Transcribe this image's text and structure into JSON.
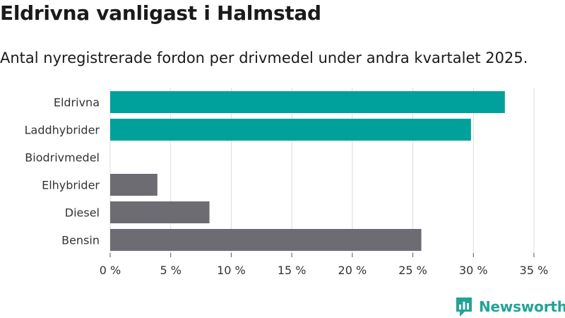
{
  "title": "Eldrivna vanligast i Halmstad",
  "subtitle": "Antal nyregistrerade fordon per drivmedel under andra kvartalet 2025.",
  "brand": {
    "name": "Newsworthy",
    "icon": "newsworthy-logo-icon",
    "color": "#22a398"
  },
  "chart_data": {
    "type": "bar",
    "orientation": "horizontal",
    "categories": [
      "Eldrivna",
      "Laddhybrider",
      "Biodrivmedel",
      "Elhybrider",
      "Diesel",
      "Bensin"
    ],
    "values": [
      32.6,
      29.8,
      0,
      3.9,
      8.2,
      25.7
    ],
    "colors": [
      "#00a19a",
      "#00a19a",
      "#00a19a",
      "#6d6c73",
      "#6d6c73",
      "#6d6c73"
    ],
    "xlim": [
      0,
      35
    ],
    "xticks": [
      0,
      5,
      10,
      15,
      20,
      25,
      30,
      35
    ],
    "tick_labels": [
      "0 %",
      "5 %",
      "10 %",
      "15 %",
      "20 %",
      "25 %",
      "30 %",
      "35 %"
    ],
    "grid": "vertical",
    "legend": "none"
  }
}
